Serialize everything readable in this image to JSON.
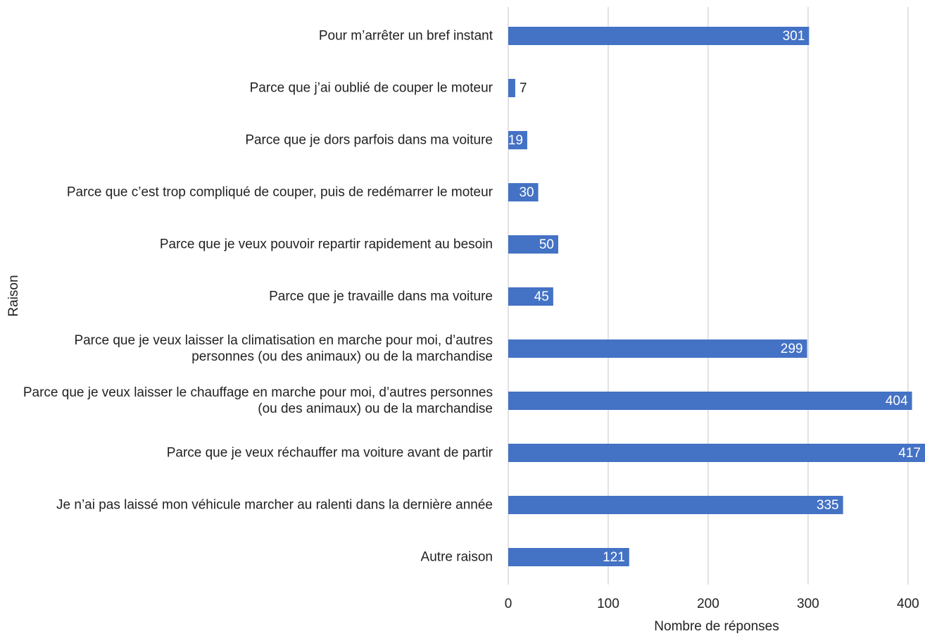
{
  "chart_data": {
    "type": "hbar",
    "categories": [
      "Pour m’arrêter un bref instant",
      "Parce que j’ai oublié de couper le moteur",
      "Parce que je dors parfois dans ma voiture",
      "Parce que c’est trop compliqué de couper, puis de redémarrer le moteur",
      "Parce que je veux pouvoir repartir rapidement au besoin",
      "Parce que je travaille dans ma voiture",
      "Parce que je veux laisser la climatisation en marche pour moi, d’autres personnes (ou des animaux) ou de la marchandise",
      "Parce que je veux laisser le chauffage en marche pour moi, d’autres personnes (ou des animaux) ou de la marchandise",
      "Parce que je veux réchauffer ma voiture avant de partir",
      "Je n’ai pas laissé mon véhicule marcher au ralenti dans la dernière année",
      "Autre raison"
    ],
    "values": [
      301,
      7,
      19,
      30,
      50,
      45,
      299,
      404,
      417,
      335,
      121
    ],
    "color": "#4472c4",
    "xlim": [
      0,
      417
    ],
    "xticks": [
      0,
      100,
      200,
      300,
      400
    ],
    "grid": true,
    "xlabel": "Nombre de réponses",
    "ylabel": "Raison"
  }
}
